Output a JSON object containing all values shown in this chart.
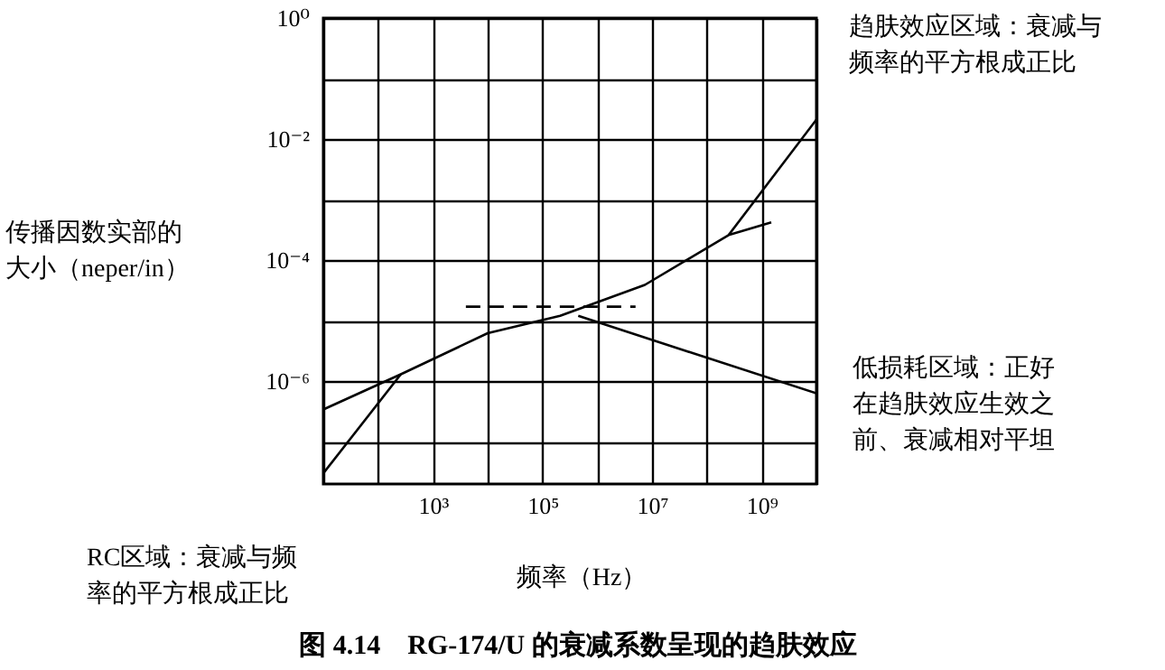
{
  "chart_data": {
    "type": "line",
    "title": "图 4.14　RG-174/U 的衰减系数呈现的趋肤效应",
    "xlabel": "频率（Hz）",
    "ylabel": "传播因数实部的大小（neper/in）",
    "annotations": [
      "趋肤效应区域：衰减与频率的平方根成正比",
      "低损耗区域：正好在趋肤效应生效之前、衰减相对平坦",
      "RC区域：衰减与频率的平方根成正比"
    ],
    "log": "xy",
    "grid": true,
    "marker": "none",
    "xlim": [
      10,
      10000000000
    ],
    "ylim": [
      2e-08,
      1
    ],
    "xticks": [
      {
        "value": 10,
        "label": null
      },
      {
        "value": 100,
        "label": null
      },
      {
        "value": 1000,
        "label": "10³"
      },
      {
        "value": 10000,
        "label": null
      },
      {
        "value": 100000,
        "label": "10⁵"
      },
      {
        "value": 1000000,
        "label": null
      },
      {
        "value": 10000000,
        "label": "10⁷"
      },
      {
        "value": 100000000,
        "label": null
      },
      {
        "value": 1000000000,
        "label": "10⁹"
      },
      {
        "value": 10000000000,
        "label": null
      }
    ],
    "yticks": [
      {
        "value": 1,
        "label": "10⁰"
      },
      {
        "value": 0.1,
        "label": null
      },
      {
        "value": 0.01,
        "label": "10⁻²"
      },
      {
        "value": 0.001,
        "label": null
      },
      {
        "value": 0.0001,
        "label": "10⁻⁴"
      },
      {
        "value": 1e-05,
        "label": null
      },
      {
        "value": 1e-06,
        "label": "10⁻⁶"
      },
      {
        "value": 1e-07,
        "label": null
      }
    ],
    "series": [
      {
        "color": "#000000",
        "line_style": "solid",
        "x": [
          10,
          260,
          10000,
          210000,
          7400000,
          250000000,
          1500000000
        ],
        "values": [
          3.4e-07,
          1.3e-06,
          6.2e-06,
          1.2e-05,
          3.9e-05,
          0.00026,
          0.00042
        ]
      },
      {
        "color": "#000000",
        "line_style": "solid",
        "x": [
          10,
          260
        ],
        "values": [
          3e-08,
          1.3e-06
        ]
      },
      {
        "color": "#000000",
        "line_style": "dashed",
        "x": [
          4000,
          5000000
        ],
        "values": [
          1.7e-05,
          1.7e-05
        ]
      },
      {
        "color": "#000000",
        "line_style": "solid",
        "x": [
          450000,
          10000000000
        ],
        "values": [
          1.2e-05,
          6.3e-07
        ]
      },
      {
        "color": "#000000",
        "line_style": "solid",
        "x": [
          250000000,
          10000000000
        ],
        "values": [
          0.00026,
          0.021
        ]
      }
    ]
  }
}
